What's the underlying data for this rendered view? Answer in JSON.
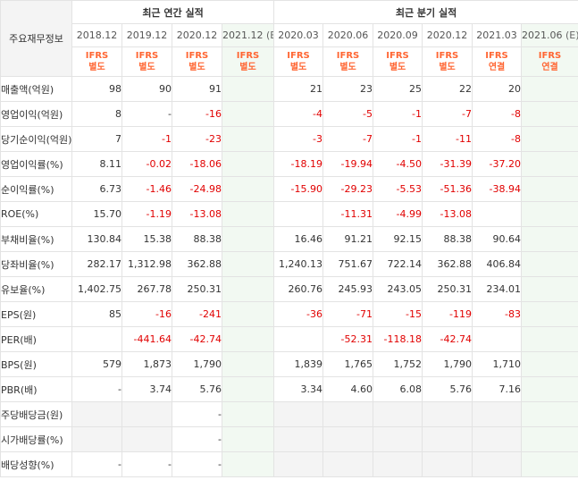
{
  "header": {
    "row_label_title": "주요재무정보",
    "annual_title": "최근 연간 실적",
    "quarterly_title": "최근 분기 실적"
  },
  "periods": [
    {
      "label": "2018.12",
      "estimate": false,
      "ifrs": "IFRS",
      "basis": "별도"
    },
    {
      "label": "2019.12",
      "estimate": false,
      "ifrs": "IFRS",
      "basis": "별도"
    },
    {
      "label": "2020.12",
      "estimate": false,
      "ifrs": "IFRS",
      "basis": "별도"
    },
    {
      "label": "2021.12",
      "estimate": true,
      "est_mark": "(E)",
      "ifrs": "IFRS",
      "basis": "별도"
    },
    {
      "label": "2020.03",
      "estimate": false,
      "ifrs": "IFRS",
      "basis": "별도"
    },
    {
      "label": "2020.06",
      "estimate": false,
      "ifrs": "IFRS",
      "basis": "별도"
    },
    {
      "label": "2020.09",
      "estimate": false,
      "ifrs": "IFRS",
      "basis": "별도"
    },
    {
      "label": "2020.12",
      "estimate": false,
      "ifrs": "IFRS",
      "basis": "별도"
    },
    {
      "label": "2021.03",
      "estimate": false,
      "ifrs": "IFRS",
      "basis": "연결"
    },
    {
      "label": "2021.06",
      "estimate": true,
      "est_mark": "(E)",
      "ifrs": "IFRS",
      "basis": "연결"
    }
  ],
  "rows": [
    {
      "label": "매출액(억원)",
      "values": [
        "98",
        "90",
        "91",
        "",
        "21",
        "23",
        "25",
        "22",
        "20",
        ""
      ]
    },
    {
      "label": "영업이익(억원)",
      "values": [
        "8",
        "-",
        "-16",
        "",
        "-4",
        "-5",
        "-1",
        "-7",
        "-8",
        ""
      ]
    },
    {
      "label": "당기순이익(억원)",
      "values": [
        "7",
        "-1",
        "-23",
        "",
        "-3",
        "-7",
        "-1",
        "-11",
        "-8",
        ""
      ]
    },
    {
      "label": "영업이익률(%)",
      "values": [
        "8.11",
        "-0.02",
        "-18.06",
        "",
        "-18.19",
        "-19.94",
        "-4.50",
        "-31.39",
        "-37.20",
        ""
      ]
    },
    {
      "label": "순이익률(%)",
      "values": [
        "6.73",
        "-1.46",
        "-24.98",
        "",
        "-15.90",
        "-29.23",
        "-5.53",
        "-51.36",
        "-38.94",
        ""
      ]
    },
    {
      "label": "ROE(%)",
      "values": [
        "15.70",
        "-1.19",
        "-13.08",
        "",
        "",
        "-11.31",
        "-4.99",
        "-13.08",
        "",
        ""
      ]
    },
    {
      "label": "부채비율(%)",
      "values": [
        "130.84",
        "15.38",
        "88.38",
        "",
        "16.46",
        "91.21",
        "92.15",
        "88.38",
        "90.64",
        ""
      ]
    },
    {
      "label": "당좌비율(%)",
      "values": [
        "282.17",
        "1,312.98",
        "362.88",
        "",
        "1,240.13",
        "751.67",
        "722.14",
        "362.88",
        "406.84",
        ""
      ]
    },
    {
      "label": "유보율(%)",
      "values": [
        "1,402.75",
        "267.78",
        "250.31",
        "",
        "260.76",
        "245.93",
        "243.05",
        "250.31",
        "234.01",
        ""
      ]
    },
    {
      "label": "EPS(원)",
      "values": [
        "85",
        "-16",
        "-241",
        "",
        "-36",
        "-71",
        "-15",
        "-119",
        "-83",
        ""
      ]
    },
    {
      "label": "PER(배)",
      "values": [
        "",
        "-441.64",
        "-42.74",
        "",
        "",
        "-52.31",
        "-118.18",
        "-42.74",
        "",
        ""
      ]
    },
    {
      "label": "BPS(원)",
      "values": [
        "579",
        "1,873",
        "1,790",
        "",
        "1,839",
        "1,765",
        "1,752",
        "1,790",
        "1,710",
        ""
      ]
    },
    {
      "label": "PBR(배)",
      "values": [
        "-",
        "3.74",
        "5.76",
        "",
        "3.34",
        "4.60",
        "6.08",
        "5.76",
        "7.16",
        ""
      ]
    },
    {
      "label": "주당배당금(원)",
      "values": [
        "",
        "",
        "-",
        "",
        "",
        "",
        "",
        "",
        "",
        ""
      ]
    },
    {
      "label": "시가배당률(%)",
      "values": [
        "",
        "",
        "-",
        "",
        "",
        "",
        "",
        "",
        "",
        ""
      ]
    },
    {
      "label": "배당성향(%)",
      "values": [
        "-",
        "-",
        "-",
        "",
        "",
        "",
        "",
        "",
        "",
        ""
      ]
    }
  ],
  "colors": {
    "negative": "#e10000",
    "accounting_standard": "#ff6633",
    "estimate_column_bg": "#f2f9f2",
    "empty_cell_bg": "#f4f4f4"
  }
}
